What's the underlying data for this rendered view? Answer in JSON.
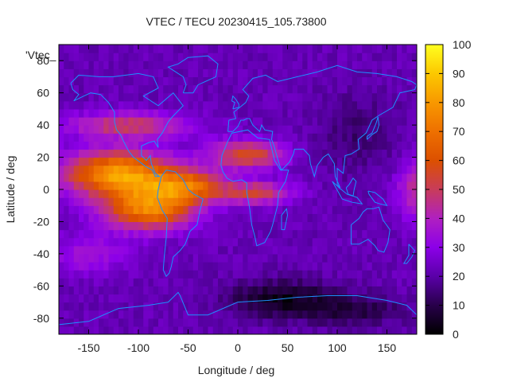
{
  "chart_data": {
    "type": "heatmap",
    "title": "VTEC / TECU 20230415_105.73800",
    "xlabel": "Longitude / deg",
    "ylabel": "Latitude / deg",
    "key_label": "'Vtec_",
    "xlim": [
      -180,
      180
    ],
    "ylim": [
      -90,
      90
    ],
    "x_ticks": [
      -150,
      -100,
      -50,
      0,
      50,
      100,
      150
    ],
    "y_ticks": [
      -80,
      -60,
      -40,
      -20,
      0,
      20,
      40,
      60,
      80
    ],
    "colorbar": {
      "min": 0,
      "max": 100,
      "ticks": [
        0,
        10,
        20,
        30,
        40,
        50,
        60,
        70,
        80,
        90,
        100
      ],
      "palette": [
        "#000000",
        "#3a0070",
        "#7800d8",
        "#a818c8",
        "#c83c60",
        "#e05800",
        "#f07c00",
        "#f8b000",
        "#ffe000",
        "#ffff40"
      ]
    },
    "grid": false,
    "coastline_color": "#1e90ff"
  }
}
